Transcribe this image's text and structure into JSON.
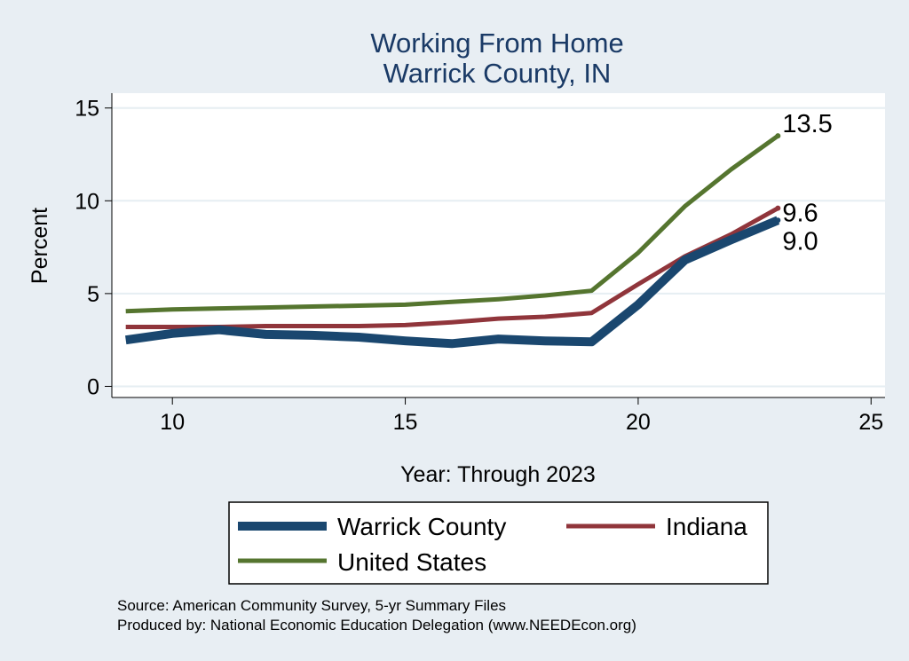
{
  "chart_data": {
    "type": "line",
    "title": [
      "Working From Home",
      "Warrick County, IN"
    ],
    "xlabel": "Year: Through 2023",
    "ylabel": "Percent",
    "xlim": [
      8.7,
      25.3
    ],
    "ylim": [
      -0.6,
      15.8
    ],
    "xticks": [
      10,
      15,
      20,
      25
    ],
    "yticks": [
      0,
      5,
      10,
      15
    ],
    "grid": true,
    "legend_position": "bottom",
    "series": [
      {
        "name": "Warrick County",
        "color": "#1a476f",
        "x": [
          9,
          10,
          11,
          12,
          13,
          14,
          15,
          16,
          17,
          18,
          19,
          20,
          21,
          22,
          23
        ],
        "values": [
          2.5,
          2.85,
          3.05,
          2.8,
          2.75,
          2.65,
          2.45,
          2.3,
          2.55,
          2.45,
          2.4,
          4.4,
          6.8,
          7.9,
          8.95
        ],
        "end_label": "9.0"
      },
      {
        "name": "Indiana",
        "color": "#90353b",
        "x": [
          9,
          10,
          11,
          12,
          13,
          14,
          15,
          16,
          17,
          18,
          19,
          20,
          21,
          22,
          23
        ],
        "values": [
          3.2,
          3.2,
          3.2,
          3.25,
          3.25,
          3.25,
          3.3,
          3.45,
          3.65,
          3.75,
          3.95,
          5.5,
          7.0,
          8.2,
          9.6
        ],
        "end_label": "9.6"
      },
      {
        "name": "United States",
        "color": "#55752f",
        "x": [
          9,
          10,
          11,
          12,
          13,
          14,
          15,
          16,
          17,
          18,
          19,
          20,
          21,
          22,
          23
        ],
        "values": [
          4.05,
          4.15,
          4.2,
          4.25,
          4.3,
          4.35,
          4.4,
          4.55,
          4.7,
          4.9,
          5.15,
          7.2,
          9.7,
          11.7,
          13.5
        ],
        "end_label": "13.5"
      }
    ],
    "notes": [
      "Source: American Community Survey, 5-yr Summary Files",
      "Produced by: National Economic Education Delegation (www.NEEDEcon.org)"
    ]
  }
}
